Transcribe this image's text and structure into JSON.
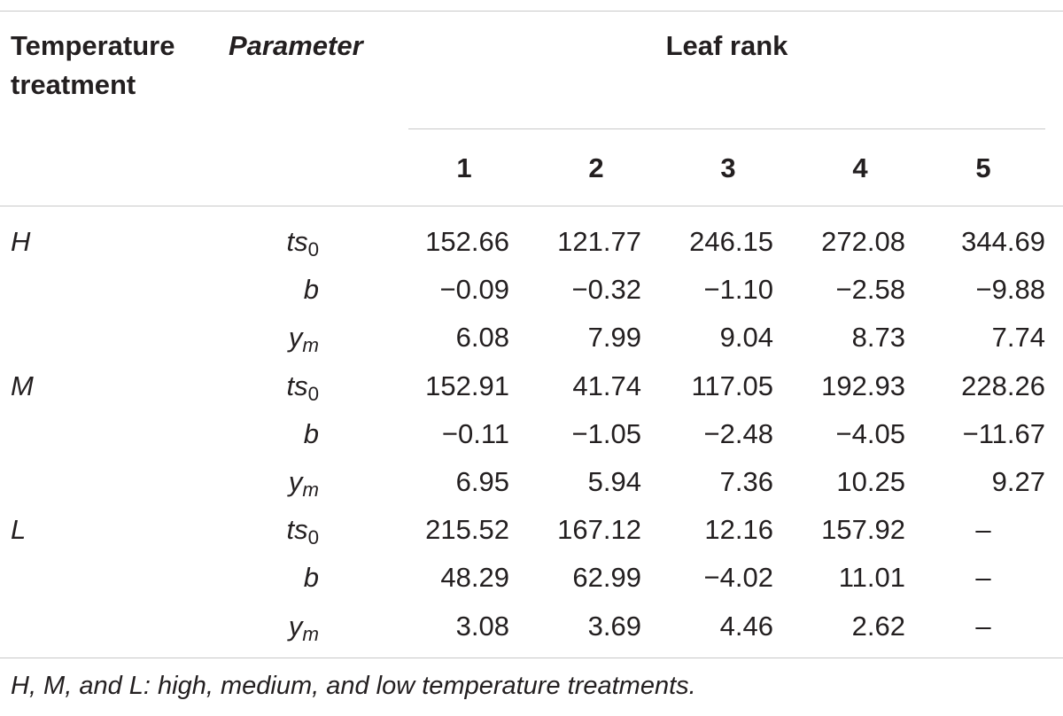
{
  "table": {
    "header": {
      "temperature_treatment": "Temperature treatment",
      "parameter": "Parameter",
      "leaf_rank": "Leaf rank",
      "columns": [
        "1",
        "2",
        "3",
        "4",
        "5"
      ]
    },
    "rows": [
      {
        "treatment": "H",
        "param_base": "ts",
        "param_sub": "0",
        "values": [
          "152.66",
          "121.77",
          "246.15",
          "272.08",
          "344.69"
        ]
      },
      {
        "treatment": "",
        "param_base": "b",
        "param_sub": "",
        "values": [
          "−0.09",
          "−0.32",
          "−1.10",
          "−2.58",
          "−9.88"
        ]
      },
      {
        "treatment": "",
        "param_base": "y",
        "param_sub": "m",
        "values": [
          "6.08",
          "7.99",
          "9.04",
          "8.73",
          "7.74"
        ]
      },
      {
        "treatment": "M",
        "param_base": "ts",
        "param_sub": "0",
        "values": [
          "152.91",
          "41.74",
          "117.05",
          "192.93",
          "228.26"
        ]
      },
      {
        "treatment": "",
        "param_base": "b",
        "param_sub": "",
        "values": [
          "−0.11",
          "−1.05",
          "−2.48",
          "−4.05",
          "−11.67"
        ]
      },
      {
        "treatment": "",
        "param_base": "y",
        "param_sub": "m",
        "values": [
          "6.95",
          "5.94",
          "7.36",
          "10.25",
          "9.27"
        ]
      },
      {
        "treatment": "L",
        "param_base": "ts",
        "param_sub": "0",
        "values": [
          "215.52",
          "167.12",
          "12.16",
          "157.92",
          "–"
        ]
      },
      {
        "treatment": "",
        "param_base": "b",
        "param_sub": "",
        "values": [
          "48.29",
          "62.99",
          "−4.02",
          "11.01",
          "–"
        ]
      },
      {
        "treatment": "",
        "param_base": "y",
        "param_sub": "m",
        "values": [
          "3.08",
          "3.69",
          "4.46",
          "2.62",
          "–"
        ]
      }
    ],
    "footnote": "H, M, and L: high, medium, and low temperature treatments."
  }
}
